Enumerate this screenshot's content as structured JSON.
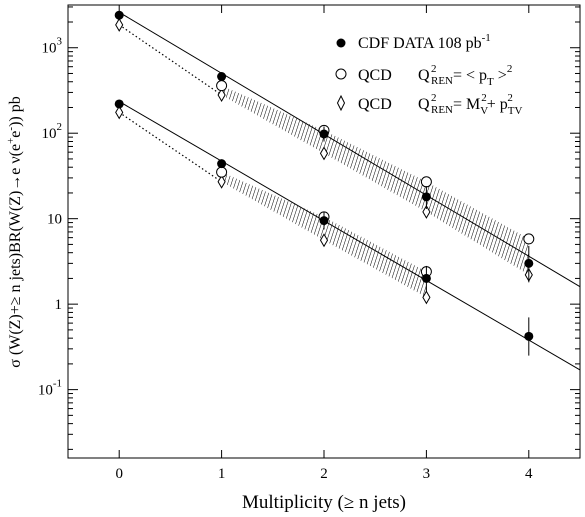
{
  "chart_data": {
    "type": "scatter",
    "xlabel": "Multiplicity (≥ n jets)",
    "ylabel_parts": {
      "lead": "σ (W(Z)+≥ n jets)BR(W(Z)→e ν(e",
      "sup": "+",
      "mid": "e",
      "sup2": "-",
      "tail": ")) pb"
    },
    "xlim": [
      -0.5,
      4.5
    ],
    "ylim_log10": [
      -1.8,
      3.5
    ],
    "yscale": "log",
    "x_ticks": [
      "0",
      "1",
      "2",
      "3",
      "4"
    ],
    "y_ticks": [
      {
        "value": 1000,
        "base": "10",
        "exp": "3"
      },
      {
        "value": 100,
        "base": "10",
        "exp": "2"
      },
      {
        "value": 10,
        "base": "10",
        "exp": ""
      },
      {
        "value": 1,
        "base": "1",
        "exp": ""
      },
      {
        "value": 0.1,
        "base": "10",
        "exp": "-1"
      }
    ],
    "legend": {
      "position": "top-right",
      "cdf": {
        "label": "CDF DATA 108 pb",
        "sup": "-1"
      },
      "qcd1": {
        "name": "QCD",
        "q": "Q",
        "q_sup": "2",
        "q_sub": "REN",
        "rhs": "= < p",
        "rhs_sub": "T",
        "rhs_tail": " >",
        "rhs_sup": "2"
      },
      "qcd2": {
        "name": "QCD",
        "q": "Q",
        "q_sup": "2",
        "q_sub": "REN",
        "rhs": "= M",
        "rhs_sub1": "V",
        "rhs_sup1": "2",
        "plus": "+ p",
        "rhs_sub2": "TV",
        "rhs_sup2": "2"
      }
    },
    "series": [
      {
        "group": "W",
        "cdf_data": [
          {
            "x": 0,
            "y": 2400
          },
          {
            "x": 1,
            "y": 460
          },
          {
            "x": 2,
            "y": 98,
            "err": [
              80,
              120
            ]
          },
          {
            "x": 3,
            "y": 18,
            "err": [
              13,
              24
            ]
          },
          {
            "x": 4,
            "y": 3.0,
            "err": [
              1.8,
              4.8
            ]
          }
        ],
        "qcd_pt": [
          {
            "x": 1,
            "y": 360
          },
          {
            "x": 2,
            "y": 108
          },
          {
            "x": 3,
            "y": 27
          },
          {
            "x": 4,
            "y": 5.8
          }
        ],
        "qcd_mv": [
          {
            "x": 0,
            "y": 1850
          },
          {
            "x": 1,
            "y": 280
          },
          {
            "x": 2,
            "y": 58
          },
          {
            "x": 3,
            "y": 12
          },
          {
            "x": 4,
            "y": 2.2
          }
        ],
        "fit_line": [
          {
            "x": 0,
            "y": 2600
          },
          {
            "x": 4.5,
            "y": 1.6
          }
        ]
      },
      {
        "group": "Z",
        "cdf_data": [
          {
            "x": 0,
            "y": 220
          },
          {
            "x": 1,
            "y": 44
          },
          {
            "x": 2,
            "y": 9.5,
            "err": [
              7.5,
              12
            ]
          },
          {
            "x": 3,
            "y": 2.0,
            "err": [
              1.4,
              2.8
            ]
          },
          {
            "x": 4,
            "y": 0.42,
            "err": [
              0.25,
              0.7
            ]
          }
        ],
        "qcd_pt": [
          {
            "x": 1,
            "y": 35
          },
          {
            "x": 2,
            "y": 10.5
          },
          {
            "x": 3,
            "y": 2.4
          }
        ],
        "qcd_mv": [
          {
            "x": 0,
            "y": 175
          },
          {
            "x": 1,
            "y": 27
          },
          {
            "x": 2,
            "y": 5.6
          },
          {
            "x": 3,
            "y": 1.2
          }
        ],
        "fit_line": [
          {
            "x": 0,
            "y": 235
          },
          {
            "x": 4.5,
            "y": 0.17
          }
        ]
      }
    ]
  }
}
